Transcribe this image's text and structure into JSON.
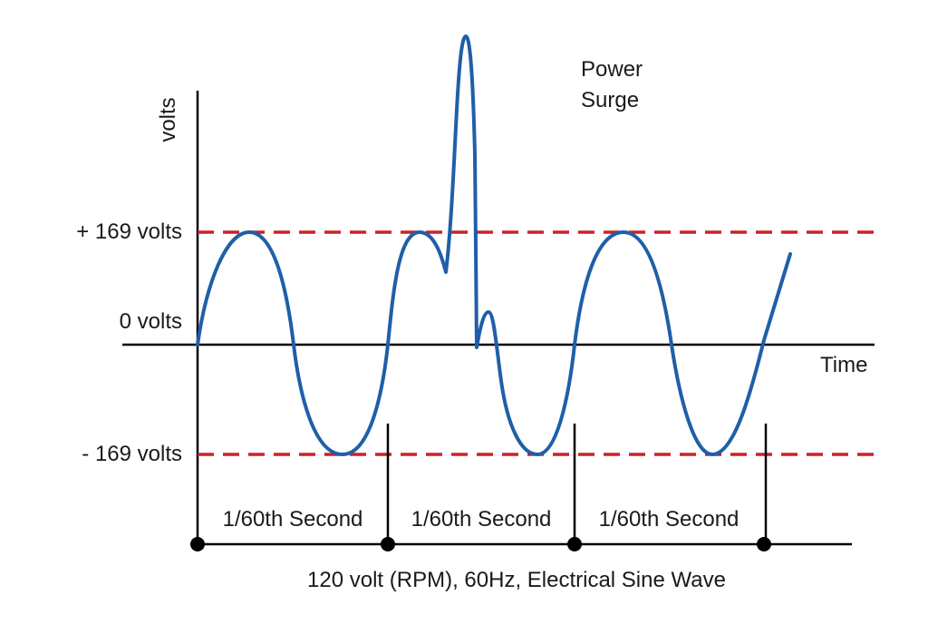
{
  "diagram": {
    "title": "120 volt (RPM), 60Hz, Electrical Sine Wave",
    "y_axis_label": "volts",
    "x_axis_label": "Time",
    "surge_label_line1": "Power",
    "surge_label_line2": "Surge",
    "levels": {
      "positive": "+ 169 volts",
      "zero": "0 volts",
      "negative": "- 169 volts"
    },
    "periods": [
      "1/60th Second",
      "1/60th Second",
      "1/60th Second"
    ]
  },
  "colors": {
    "wave": "#1f5fa8",
    "limit": "#cc2229",
    "axis": "#000000"
  }
}
